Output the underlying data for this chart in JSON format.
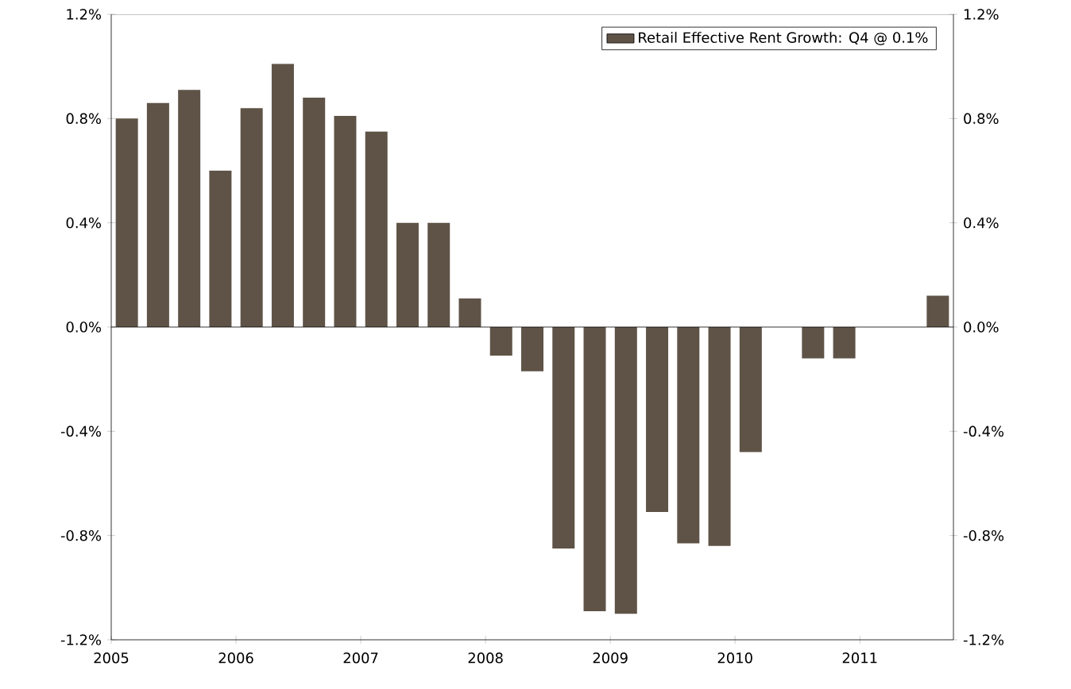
{
  "chart_data": {
    "type": "bar",
    "x": [
      2005.125,
      2005.375,
      2005.625,
      2005.875,
      2006.125,
      2006.375,
      2006.625,
      2006.875,
      2007.125,
      2007.375,
      2007.625,
      2007.875,
      2008.125,
      2008.375,
      2008.625,
      2008.875,
      2009.125,
      2009.375,
      2009.625,
      2009.875,
      2010.125,
      2010.375,
      2010.625,
      2010.875,
      2011.125,
      2011.375,
      2011.625
    ],
    "series": [
      {
        "name": "Retail Effective Rent Growth: Q4 @ 0.1%",
        "color": "#5f5347",
        "values": [
          0.8,
          0.86,
          0.91,
          0.6,
          0.84,
          1.01,
          0.88,
          0.81,
          0.75,
          0.4,
          0.4,
          0.11,
          -0.11,
          -0.17,
          -0.85,
          -1.09,
          -1.1,
          -0.71,
          -0.83,
          -0.84,
          -0.48,
          null,
          -0.12,
          -0.12,
          null,
          null,
          0.12
        ]
      }
    ],
    "xlim": [
      2005,
      2011.75
    ],
    "xticks": [
      2005,
      2006,
      2007,
      2008,
      2009,
      2010,
      2011
    ],
    "ylim": [
      -1.2,
      1.2
    ],
    "yticks": [
      {
        "value": -1.2,
        "label": "-1.2%"
      },
      {
        "value": -0.8,
        "label": "-0.8%"
      },
      {
        "value": -0.4,
        "label": "-0.4%"
      },
      {
        "value": 0,
        "label": "0.0%"
      },
      {
        "value": 0.4,
        "label": "0.4%"
      },
      {
        "value": 0.8,
        "label": "0.8%"
      },
      {
        "value": 1.2,
        "label": "1.2%"
      }
    ],
    "y2lim": [
      -1.2,
      1.2
    ],
    "y2ticks": [
      {
        "value": -1.2,
        "label": "-1.2%"
      },
      {
        "value": -0.8,
        "label": "-0.8%"
      },
      {
        "value": -0.4,
        "label": "-0.4%"
      },
      {
        "value": 0,
        "label": "0.0%"
      },
      {
        "value": 0.4,
        "label": "0.4%"
      },
      {
        "value": 0.8,
        "label": "0.8%"
      },
      {
        "value": 1.2,
        "label": "1.2%"
      }
    ],
    "legend": "top right"
  }
}
